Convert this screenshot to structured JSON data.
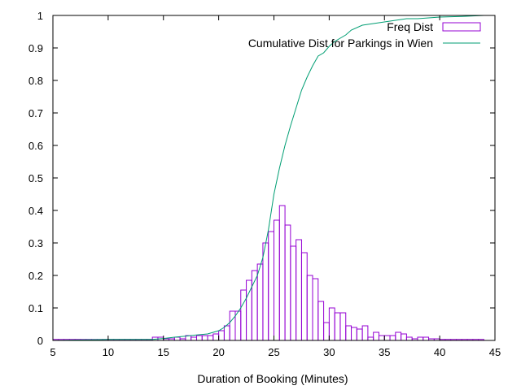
{
  "chart_data": {
    "type": "bar",
    "title": "",
    "xlabel": "Duration of Booking (Minutes)",
    "ylabel": "",
    "xlim": [
      5,
      45
    ],
    "ylim": [
      0,
      1
    ],
    "xticks": [
      "5",
      "10",
      "15",
      "20",
      "25",
      "30",
      "35",
      "40",
      "45"
    ],
    "yticks": [
      "0",
      "0.1",
      "0.2",
      "0.3",
      "0.4",
      "0.5",
      "0.6",
      "0.7",
      "0.8",
      "0.9",
      "1"
    ],
    "grid": false,
    "legend_position": "top-right",
    "colors": {
      "histogram": "#9400d3",
      "cumulative": "#009e73"
    },
    "series": [
      {
        "name": "Freq Dist",
        "kind": "histogram",
        "bin_width": 0.5,
        "bins": [
          {
            "x": 5.0,
            "y": 0.003
          },
          {
            "x": 5.5,
            "y": 0.003
          },
          {
            "x": 6.0,
            "y": 0.003
          },
          {
            "x": 6.5,
            "y": 0.003
          },
          {
            "x": 7.0,
            "y": 0.003
          },
          {
            "x": 7.5,
            "y": 0.003
          },
          {
            "x": 8.0,
            "y": 0.003
          },
          {
            "x": 8.5,
            "y": 0.003
          },
          {
            "x": 9.0,
            "y": 0.003
          },
          {
            "x": 9.5,
            "y": 0.003
          },
          {
            "x": 10.0,
            "y": 0.003
          },
          {
            "x": 10.5,
            "y": 0.003
          },
          {
            "x": 11.0,
            "y": 0.003
          },
          {
            "x": 11.5,
            "y": 0.003
          },
          {
            "x": 12.0,
            "y": 0.003
          },
          {
            "x": 12.5,
            "y": 0.003
          },
          {
            "x": 13.0,
            "y": 0.003
          },
          {
            "x": 13.5,
            "y": 0.003
          },
          {
            "x": 14.0,
            "y": 0.01
          },
          {
            "x": 14.5,
            "y": 0.01
          },
          {
            "x": 15.0,
            "y": 0.005
          },
          {
            "x": 15.5,
            "y": 0.005
          },
          {
            "x": 16.0,
            "y": 0.01
          },
          {
            "x": 16.5,
            "y": 0.005
          },
          {
            "x": 17.0,
            "y": 0.015
          },
          {
            "x": 17.5,
            "y": 0.01
          },
          {
            "x": 18.0,
            "y": 0.015
          },
          {
            "x": 18.5,
            "y": 0.015
          },
          {
            "x": 19.0,
            "y": 0.015
          },
          {
            "x": 19.5,
            "y": 0.02
          },
          {
            "x": 20.0,
            "y": 0.03
          },
          {
            "x": 20.5,
            "y": 0.045
          },
          {
            "x": 21.0,
            "y": 0.09
          },
          {
            "x": 21.5,
            "y": 0.09
          },
          {
            "x": 22.0,
            "y": 0.155
          },
          {
            "x": 22.5,
            "y": 0.185
          },
          {
            "x": 23.0,
            "y": 0.215
          },
          {
            "x": 23.5,
            "y": 0.235
          },
          {
            "x": 24.0,
            "y": 0.3
          },
          {
            "x": 24.5,
            "y": 0.335
          },
          {
            "x": 25.0,
            "y": 0.37
          },
          {
            "x": 25.5,
            "y": 0.415
          },
          {
            "x": 26.0,
            "y": 0.355
          },
          {
            "x": 26.5,
            "y": 0.29
          },
          {
            "x": 27.0,
            "y": 0.31
          },
          {
            "x": 27.5,
            "y": 0.27
          },
          {
            "x": 28.0,
            "y": 0.2
          },
          {
            "x": 28.5,
            "y": 0.19
          },
          {
            "x": 29.0,
            "y": 0.12
          },
          {
            "x": 29.5,
            "y": 0.055
          },
          {
            "x": 30.0,
            "y": 0.1
          },
          {
            "x": 30.5,
            "y": 0.085
          },
          {
            "x": 31.0,
            "y": 0.085
          },
          {
            "x": 31.5,
            "y": 0.045
          },
          {
            "x": 32.0,
            "y": 0.04
          },
          {
            "x": 32.5,
            "y": 0.035
          },
          {
            "x": 33.0,
            "y": 0.045
          },
          {
            "x": 33.5,
            "y": 0.01
          },
          {
            "x": 34.0,
            "y": 0.025
          },
          {
            "x": 34.5,
            "y": 0.015
          },
          {
            "x": 35.0,
            "y": 0.015
          },
          {
            "x": 35.5,
            "y": 0.015
          },
          {
            "x": 36.0,
            "y": 0.025
          },
          {
            "x": 36.5,
            "y": 0.02
          },
          {
            "x": 37.0,
            "y": 0.01
          },
          {
            "x": 37.5,
            "y": 0.005
          },
          {
            "x": 38.0,
            "y": 0.01
          },
          {
            "x": 38.5,
            "y": 0.01
          },
          {
            "x": 39.0,
            "y": 0.005
          },
          {
            "x": 39.5,
            "y": 0.005
          },
          {
            "x": 40.0,
            "y": 0.003
          },
          {
            "x": 40.5,
            "y": 0.003
          },
          {
            "x": 41.0,
            "y": 0.003
          },
          {
            "x": 41.5,
            "y": 0.003
          },
          {
            "x": 42.0,
            "y": 0.003
          },
          {
            "x": 42.5,
            "y": 0.003
          },
          {
            "x": 43.0,
            "y": 0.003
          },
          {
            "x": 43.5,
            "y": 0.003
          }
        ]
      },
      {
        "name": "Cumulative Dist for Parkings in Wien",
        "kind": "line",
        "x": [
          5,
          10,
          13,
          14,
          15,
          16,
          17,
          18,
          19,
          19.5,
          20,
          20.5,
          21,
          21.5,
          22,
          22.5,
          23,
          23.5,
          24,
          24.5,
          25,
          25.5,
          26,
          26.5,
          27,
          27.5,
          28,
          28.5,
          29,
          29.5,
          30,
          30.5,
          31,
          31.5,
          32,
          33,
          34,
          35,
          36,
          37,
          38,
          40,
          42,
          44
        ],
        "y": [
          0.0,
          0.003,
          0.003,
          0.003,
          0.006,
          0.01,
          0.013,
          0.017,
          0.02,
          0.025,
          0.03,
          0.04,
          0.055,
          0.075,
          0.1,
          0.13,
          0.165,
          0.2,
          0.255,
          0.34,
          0.45,
          0.53,
          0.6,
          0.66,
          0.715,
          0.77,
          0.81,
          0.845,
          0.875,
          0.885,
          0.905,
          0.92,
          0.93,
          0.94,
          0.955,
          0.97,
          0.975,
          0.98,
          0.985,
          0.99,
          0.99,
          0.995,
          0.997,
          1.0
        ]
      }
    ]
  }
}
